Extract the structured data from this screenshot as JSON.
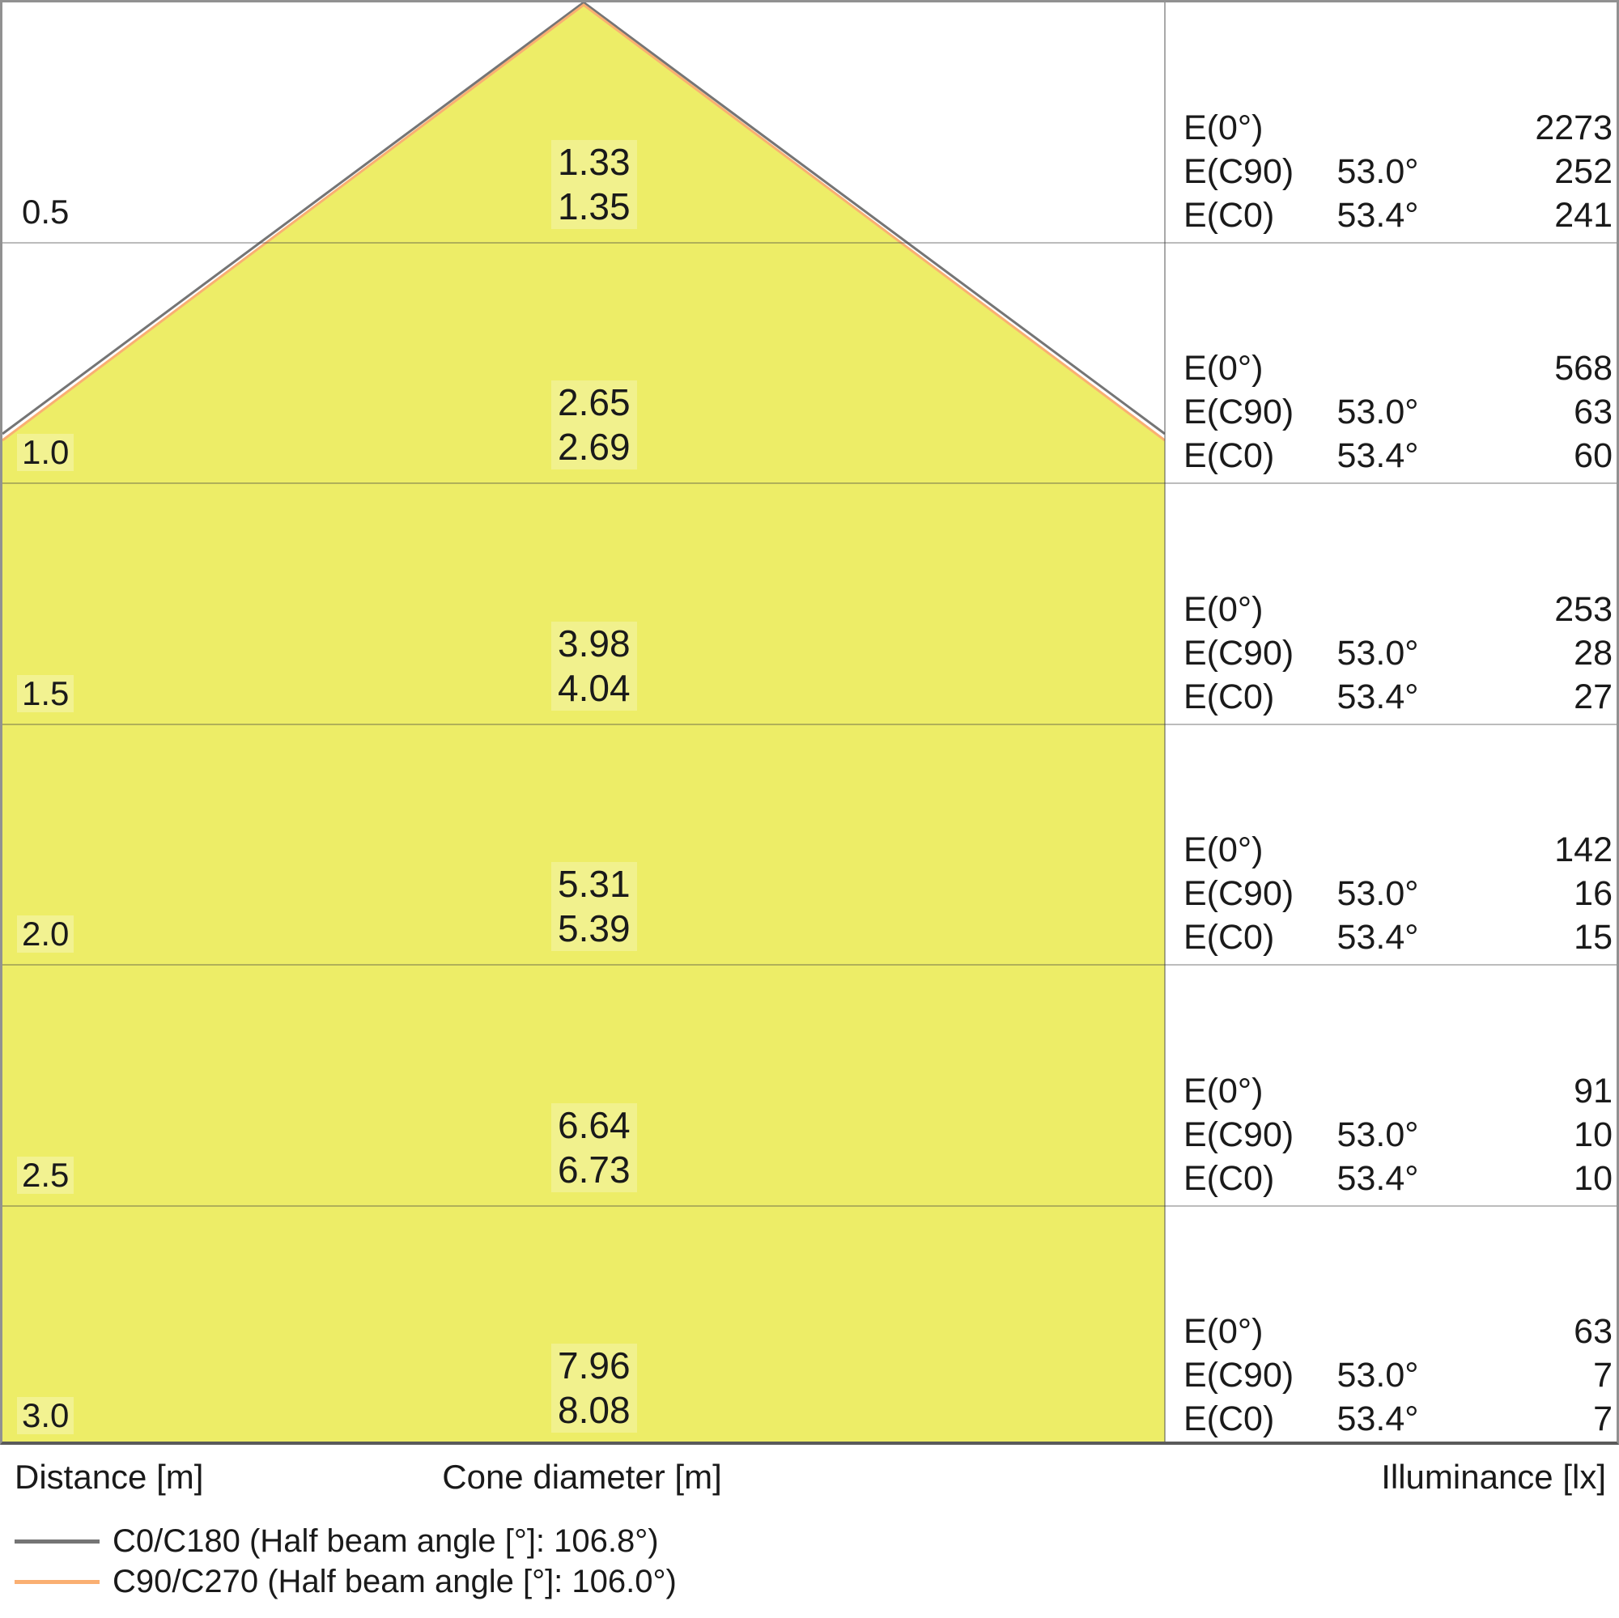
{
  "chart_data": {
    "type": "table",
    "subtype": "light-cone-diagram",
    "axis_labels": {
      "distance": "Distance [m]",
      "cone_diameter": "Cone diameter [m]",
      "illuminance": "Illuminance [lx]"
    },
    "e_row_labels": {
      "e0": "E(0°)",
      "ec90": "E(C90)",
      "ec0": "E(C0)"
    },
    "rows": [
      {
        "distance": "0.5",
        "cone_c90": "1.33",
        "cone_c0": "1.35",
        "e0": "2273",
        "ec90_angle": "53.0°",
        "ec90": "252",
        "ec0_angle": "53.4°",
        "ec0": "241"
      },
      {
        "distance": "1.0",
        "cone_c90": "2.65",
        "cone_c0": "2.69",
        "e0": "568",
        "ec90_angle": "53.0°",
        "ec90": "63",
        "ec0_angle": "53.4°",
        "ec0": "60"
      },
      {
        "distance": "1.5",
        "cone_c90": "3.98",
        "cone_c0": "4.04",
        "e0": "253",
        "ec90_angle": "53.0°",
        "ec90": "28",
        "ec0_angle": "53.4°",
        "ec0": "27"
      },
      {
        "distance": "2.0",
        "cone_c90": "5.31",
        "cone_c0": "5.39",
        "e0": "142",
        "ec90_angle": "53.0°",
        "ec90": "16",
        "ec0_angle": "53.4°",
        "ec0": "15"
      },
      {
        "distance": "2.5",
        "cone_c90": "6.64",
        "cone_c0": "6.73",
        "e0": "91",
        "ec90_angle": "53.0°",
        "ec90": "10",
        "ec0_angle": "53.4°",
        "ec0": "10"
      },
      {
        "distance": "3.0",
        "cone_c90": "7.96",
        "cone_c0": "8.08",
        "e0": "63",
        "ec90_angle": "53.0°",
        "ec90": "7",
        "ec0_angle": "53.4°",
        "ec0": "7"
      }
    ],
    "legend": [
      {
        "series": "C0/C180",
        "label": "C0/C180 (Half beam angle [°]: 106.8°)",
        "half_beam_angle_deg": 106.8,
        "color": "#757575"
      },
      {
        "series": "C90/C270",
        "label": "C90/C270 (Half beam angle [°]: 106.0°)",
        "half_beam_angle_deg": 106.0,
        "color": "#FAAF72"
      }
    ],
    "cone_fill_color": "#EDED67",
    "distances_m": [
      0.5,
      1.0,
      1.5,
      2.0,
      2.5,
      3.0
    ]
  }
}
